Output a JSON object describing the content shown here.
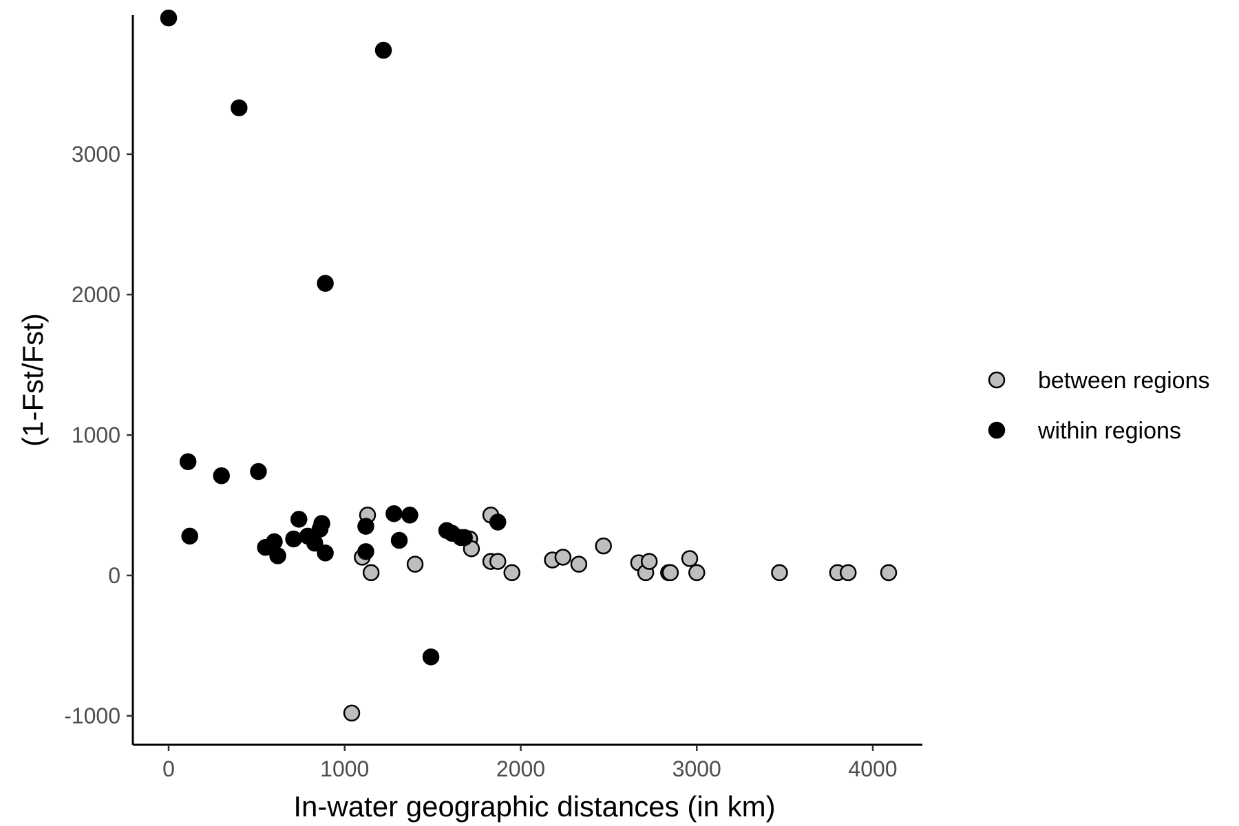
{
  "chart_data": {
    "type": "scatter",
    "title": "",
    "xlabel": "In-water geographic distances (in km)",
    "ylabel": "(1-Fst/Fst)",
    "xlim": [
      -200,
      4300
    ],
    "ylim": [
      -1200,
      3950
    ],
    "xticks": [
      0,
      1000,
      2000,
      3000,
      4000
    ],
    "xtick_labels": [
      "0",
      "1000",
      "2000",
      "3000",
      "4000"
    ],
    "yticks": [
      -1000,
      0,
      1000,
      2000,
      3000
    ],
    "ytick_labels": [
      "-1000",
      "0",
      "1000",
      "2000",
      "3000"
    ],
    "grid": false,
    "legend_position": "right",
    "series": [
      {
        "name": "between regions",
        "color": "#bebebe",
        "edge": "#000000",
        "points": [
          [
            1040,
            -980
          ],
          [
            1100,
            130
          ],
          [
            1130,
            430
          ],
          [
            1150,
            20
          ],
          [
            1400,
            80
          ],
          [
            1710,
            260
          ],
          [
            1720,
            190
          ],
          [
            1830,
            430
          ],
          [
            1830,
            100
          ],
          [
            1870,
            100
          ],
          [
            1950,
            20
          ],
          [
            2180,
            110
          ],
          [
            2240,
            130
          ],
          [
            2330,
            80
          ],
          [
            2470,
            210
          ],
          [
            2670,
            90
          ],
          [
            2710,
            20
          ],
          [
            2730,
            100
          ],
          [
            2840,
            20
          ],
          [
            2850,
            20
          ],
          [
            2960,
            120
          ],
          [
            3000,
            20
          ],
          [
            3470,
            20
          ],
          [
            3800,
            20
          ],
          [
            3860,
            20
          ],
          [
            4090,
            20
          ]
        ]
      },
      {
        "name": "within regions",
        "color": "#000000",
        "edge": "#000000",
        "points": [
          [
            0,
            3970
          ],
          [
            1220,
            3740
          ],
          [
            400,
            3330
          ],
          [
            890,
            2080
          ],
          [
            110,
            810
          ],
          [
            300,
            710
          ],
          [
            510,
            740
          ],
          [
            120,
            280
          ],
          [
            550,
            200
          ],
          [
            600,
            240
          ],
          [
            620,
            140
          ],
          [
            710,
            260
          ],
          [
            740,
            400
          ],
          [
            790,
            280
          ],
          [
            830,
            230
          ],
          [
            860,
            330
          ],
          [
            870,
            370
          ],
          [
            890,
            160
          ],
          [
            1120,
            350
          ],
          [
            1120,
            170
          ],
          [
            1280,
            440
          ],
          [
            1310,
            250
          ],
          [
            1370,
            430
          ],
          [
            1490,
            -580
          ],
          [
            1580,
            320
          ],
          [
            1610,
            300
          ],
          [
            1660,
            270
          ],
          [
            1680,
            270
          ],
          [
            1870,
            380
          ]
        ]
      }
    ]
  }
}
